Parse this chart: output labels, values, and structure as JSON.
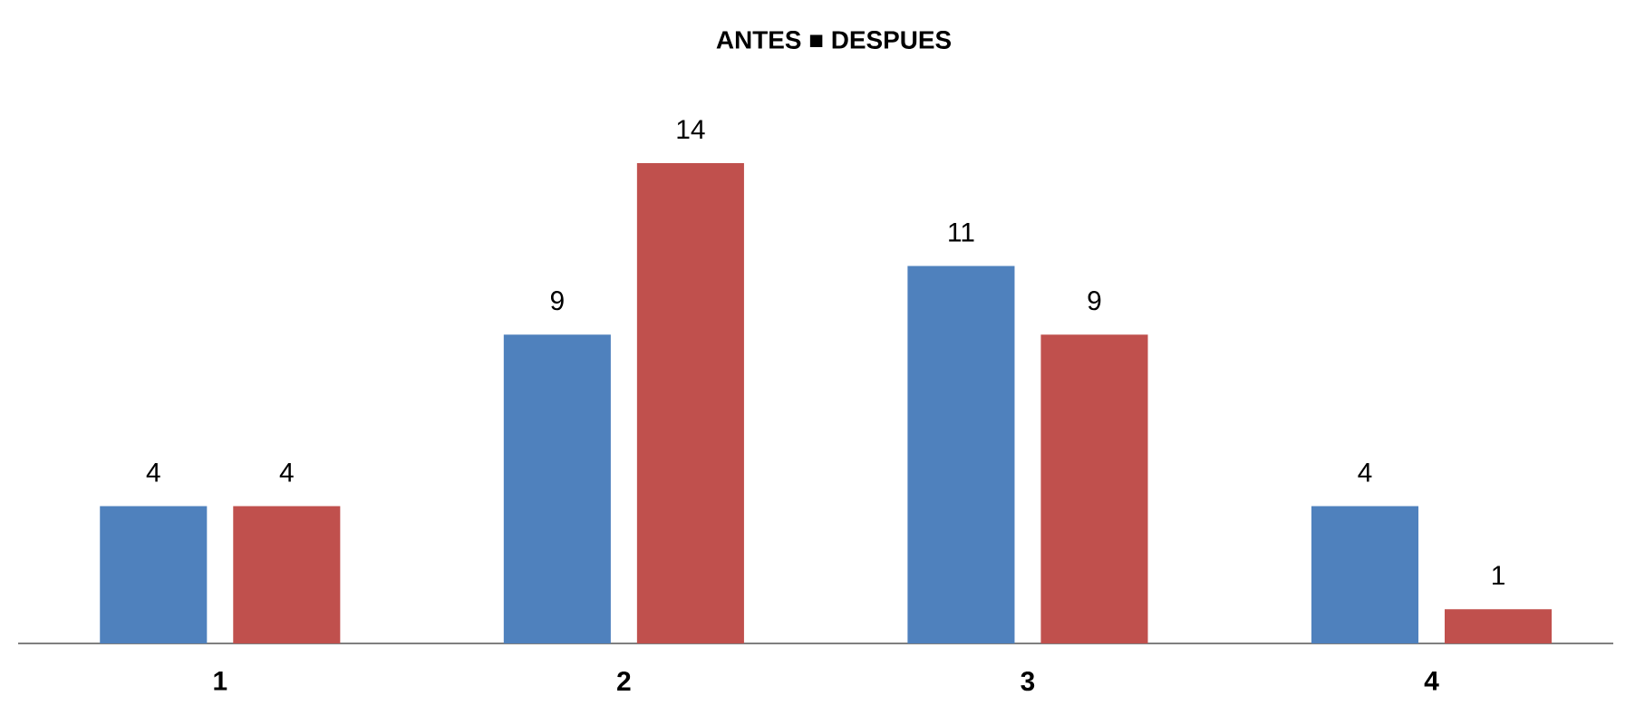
{
  "chart_data": {
    "type": "bar",
    "title": "ANTES ■ DESPUES",
    "categories": [
      "1",
      "2",
      "3",
      "4"
    ],
    "series": [
      {
        "color": "#4f81bd",
        "values": [
          4,
          9,
          11,
          4
        ]
      },
      {
        "color": "#c0504d",
        "values": [
          4,
          14,
          9,
          1
        ]
      }
    ],
    "ylim": [
      0,
      14
    ],
    "data_labels": true,
    "tick_labels": "x"
  }
}
